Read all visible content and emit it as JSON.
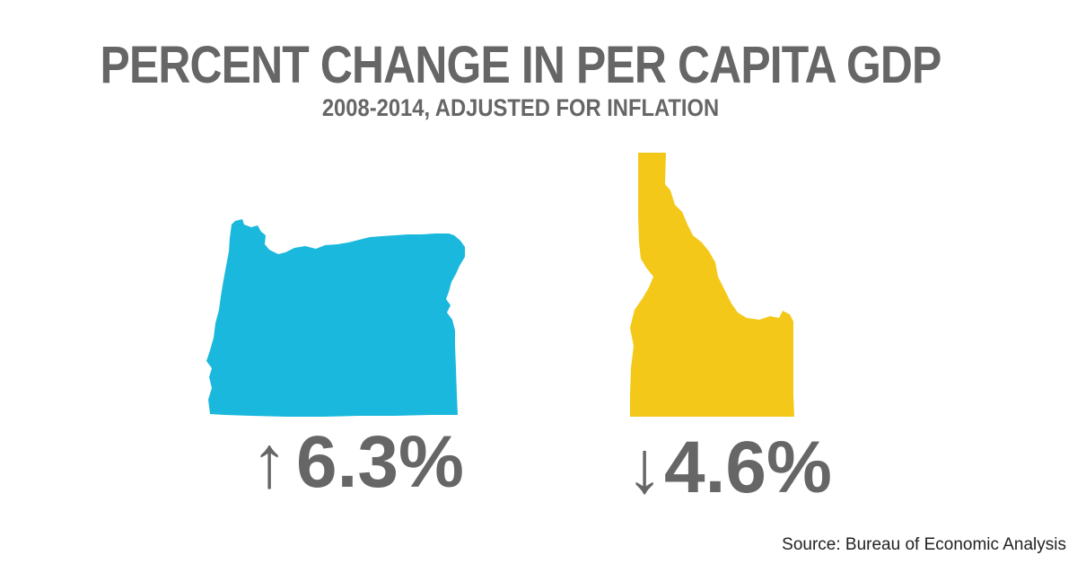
{
  "chart_data": {
    "type": "table",
    "title": "PERCENT CHANGE IN PER CAPITA GDP",
    "subtitle": "2008-2014, ADJUSTED FOR INFLATION",
    "series": [
      {
        "name": "Oregon",
        "value": 6.3,
        "label": "6.3%",
        "direction": "up",
        "arrow": "↑",
        "color": "#1ab8dc"
      },
      {
        "name": "Idaho",
        "value": -4.6,
        "label": "4.6%",
        "direction": "down",
        "arrow": "↓",
        "color": "#f4c819"
      }
    ]
  },
  "source": "Source: Bureau of Economic Analysis",
  "colors": {
    "text": "#666666",
    "oregon": "#1ab8dc",
    "idaho": "#f4c819"
  },
  "icons": {
    "oregon": "oregon-state-map-icon",
    "idaho": "idaho-state-map-icon"
  }
}
